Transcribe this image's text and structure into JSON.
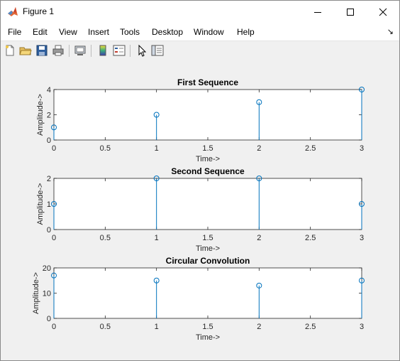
{
  "window": {
    "title": "Figure 1"
  },
  "menu": [
    "File",
    "Edit",
    "View",
    "Insert",
    "Tools",
    "Desktop",
    "Window",
    "Help"
  ],
  "menu_arrow": "↘",
  "toolbar": {
    "icons": [
      "new-figure-icon",
      "open-file-icon",
      "save-icon",
      "print-icon",
      "link-plot-icon",
      "colorbar-icon",
      "legend-icon",
      "edit-plot-icon",
      "property-inspector-icon"
    ]
  },
  "colors": {
    "stem": "#0072bd",
    "axes": "#262626",
    "figure_bg": "#f0f0f0"
  },
  "chart_data": [
    {
      "type": "stem",
      "title": "First Sequence",
      "xlabel": "Time->",
      "ylabel": "Amplitude->",
      "x": [
        0,
        1,
        2,
        3
      ],
      "values": [
        1,
        2,
        3,
        4
      ],
      "xlim": [
        0,
        3
      ],
      "ylim": [
        0,
        4
      ],
      "xticks": [
        "0",
        "0.5",
        "1",
        "1.5",
        "2",
        "2.5",
        "3"
      ],
      "yticks": [
        "0",
        "2",
        "4"
      ],
      "grid": false
    },
    {
      "type": "stem",
      "title": "Second Sequence",
      "xlabel": "Time->",
      "ylabel": "Amplitude->",
      "x": [
        0,
        1,
        2,
        3
      ],
      "values": [
        1,
        2,
        2,
        1
      ],
      "xlim": [
        0,
        3
      ],
      "ylim": [
        0,
        2
      ],
      "xticks": [
        "0",
        "0.5",
        "1",
        "1.5",
        "2",
        "2.5",
        "3"
      ],
      "yticks": [
        "0",
        "1",
        "2"
      ],
      "grid": false
    },
    {
      "type": "stem",
      "title": "Circular Convolution",
      "xlabel": "Time->",
      "ylabel": "Amplitude->",
      "x": [
        0,
        1,
        2,
        3
      ],
      "values": [
        17,
        15,
        13,
        15
      ],
      "xlim": [
        0,
        3
      ],
      "ylim": [
        0,
        20
      ],
      "xticks": [
        "0",
        "0.5",
        "1",
        "1.5",
        "2",
        "2.5",
        "3"
      ],
      "yticks": [
        "0",
        "10",
        "20"
      ],
      "grid": false
    }
  ]
}
